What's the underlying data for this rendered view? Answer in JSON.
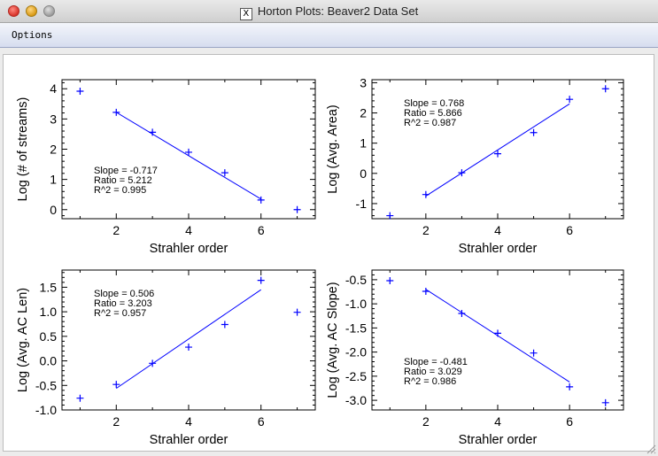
{
  "window": {
    "title": "Horton Plots: Beaver2 Data Set",
    "x_icon": "X"
  },
  "menu": {
    "options_label": "Options"
  },
  "colors": {
    "line": "#0000ff",
    "points": "#0000ff",
    "axes": "#000000"
  },
  "chart_data": [
    {
      "type": "scatter",
      "xlabel": "Strahler order",
      "ylabel": "Log (# of streams)",
      "xlim": [
        0.5,
        7.5
      ],
      "ylim": [
        -0.3,
        4.3
      ],
      "xticks": [
        2,
        4,
        6
      ],
      "yticks": [
        0,
        1,
        2,
        3,
        4
      ],
      "ytick_labels": [
        "0",
        "1",
        "2",
        "3",
        "4"
      ],
      "x": [
        1,
        2,
        3,
        4,
        5,
        6,
        7
      ],
      "y": [
        3.92,
        3.22,
        2.56,
        1.9,
        1.22,
        0.32,
        0.0
      ],
      "fit": {
        "x": [
          2,
          6
        ],
        "y": [
          3.22,
          0.35
        ]
      },
      "stats": [
        "Slope =  -0.717",
        "Ratio =  5.212",
        "R^2 =  0.995"
      ],
      "stats_position": "bottom-left"
    },
    {
      "type": "scatter",
      "xlabel": "Strahler order",
      "ylabel": "Log (Avg. Area)",
      "xlim": [
        0.5,
        7.5
      ],
      "ylim": [
        -1.5,
        3.1
      ],
      "xticks": [
        2,
        4,
        6
      ],
      "yticks": [
        -1,
        0,
        1,
        2,
        3
      ],
      "ytick_labels": [
        "-1",
        "0",
        "1",
        "2",
        "3"
      ],
      "x": [
        1,
        2,
        3,
        4,
        5,
        6,
        7
      ],
      "y": [
        -1.4,
        -0.7,
        0.02,
        0.65,
        1.35,
        2.45,
        2.8
      ],
      "fit": {
        "x": [
          2,
          6
        ],
        "y": [
          -0.75,
          2.3
        ]
      },
      "stats": [
        "Slope =  0.768",
        "Ratio =  5.866",
        "R^2 =  0.987"
      ],
      "stats_position": "top-left"
    },
    {
      "type": "scatter",
      "xlabel": "Strahler order",
      "ylabel": "Log (Avg. AC Len)",
      "xlim": [
        0.5,
        7.5
      ],
      "ylim": [
        -1.0,
        1.85
      ],
      "xticks": [
        2,
        4,
        6
      ],
      "yticks": [
        -1.0,
        -0.5,
        0.0,
        0.5,
        1.0,
        1.5
      ],
      "ytick_labels": [
        "-1.0",
        "-0.5",
        "0.0",
        "0.5",
        "1.0",
        "1.5"
      ],
      "x": [
        1,
        2,
        3,
        4,
        5,
        6,
        7
      ],
      "y": [
        -0.76,
        -0.48,
        -0.05,
        0.28,
        0.74,
        1.64,
        0.99
      ],
      "fit": {
        "x": [
          2,
          6
        ],
        "y": [
          -0.56,
          1.45
        ]
      },
      "stats": [
        "Slope =  0.506",
        "Ratio =  3.203",
        "R^2 =  0.957"
      ],
      "stats_position": "top-left"
    },
    {
      "type": "scatter",
      "xlabel": "Strahler order",
      "ylabel": "Log (Avg. AC Slope)",
      "xlim": [
        0.5,
        7.5
      ],
      "ylim": [
        -3.2,
        -0.3
      ],
      "xticks": [
        2,
        4,
        6
      ],
      "yticks": [
        -3.0,
        -2.5,
        -2.0,
        -1.5,
        -1.0,
        -0.5
      ],
      "ytick_labels": [
        "-3.0",
        "-2.5",
        "-2.0",
        "-1.5",
        "-1.0",
        "-0.5"
      ],
      "x": [
        1,
        2,
        3,
        4,
        5,
        6,
        7
      ],
      "y": [
        -0.52,
        -0.74,
        -1.2,
        -1.61,
        -2.02,
        -2.72,
        -3.05
      ],
      "fit": {
        "x": [
          2,
          6
        ],
        "y": [
          -0.7,
          -2.62
        ]
      },
      "stats": [
        "Slope =  -0.481",
        "Ratio =  3.029",
        "R^2 =  0.986"
      ],
      "stats_position": "bottom-left"
    }
  ]
}
